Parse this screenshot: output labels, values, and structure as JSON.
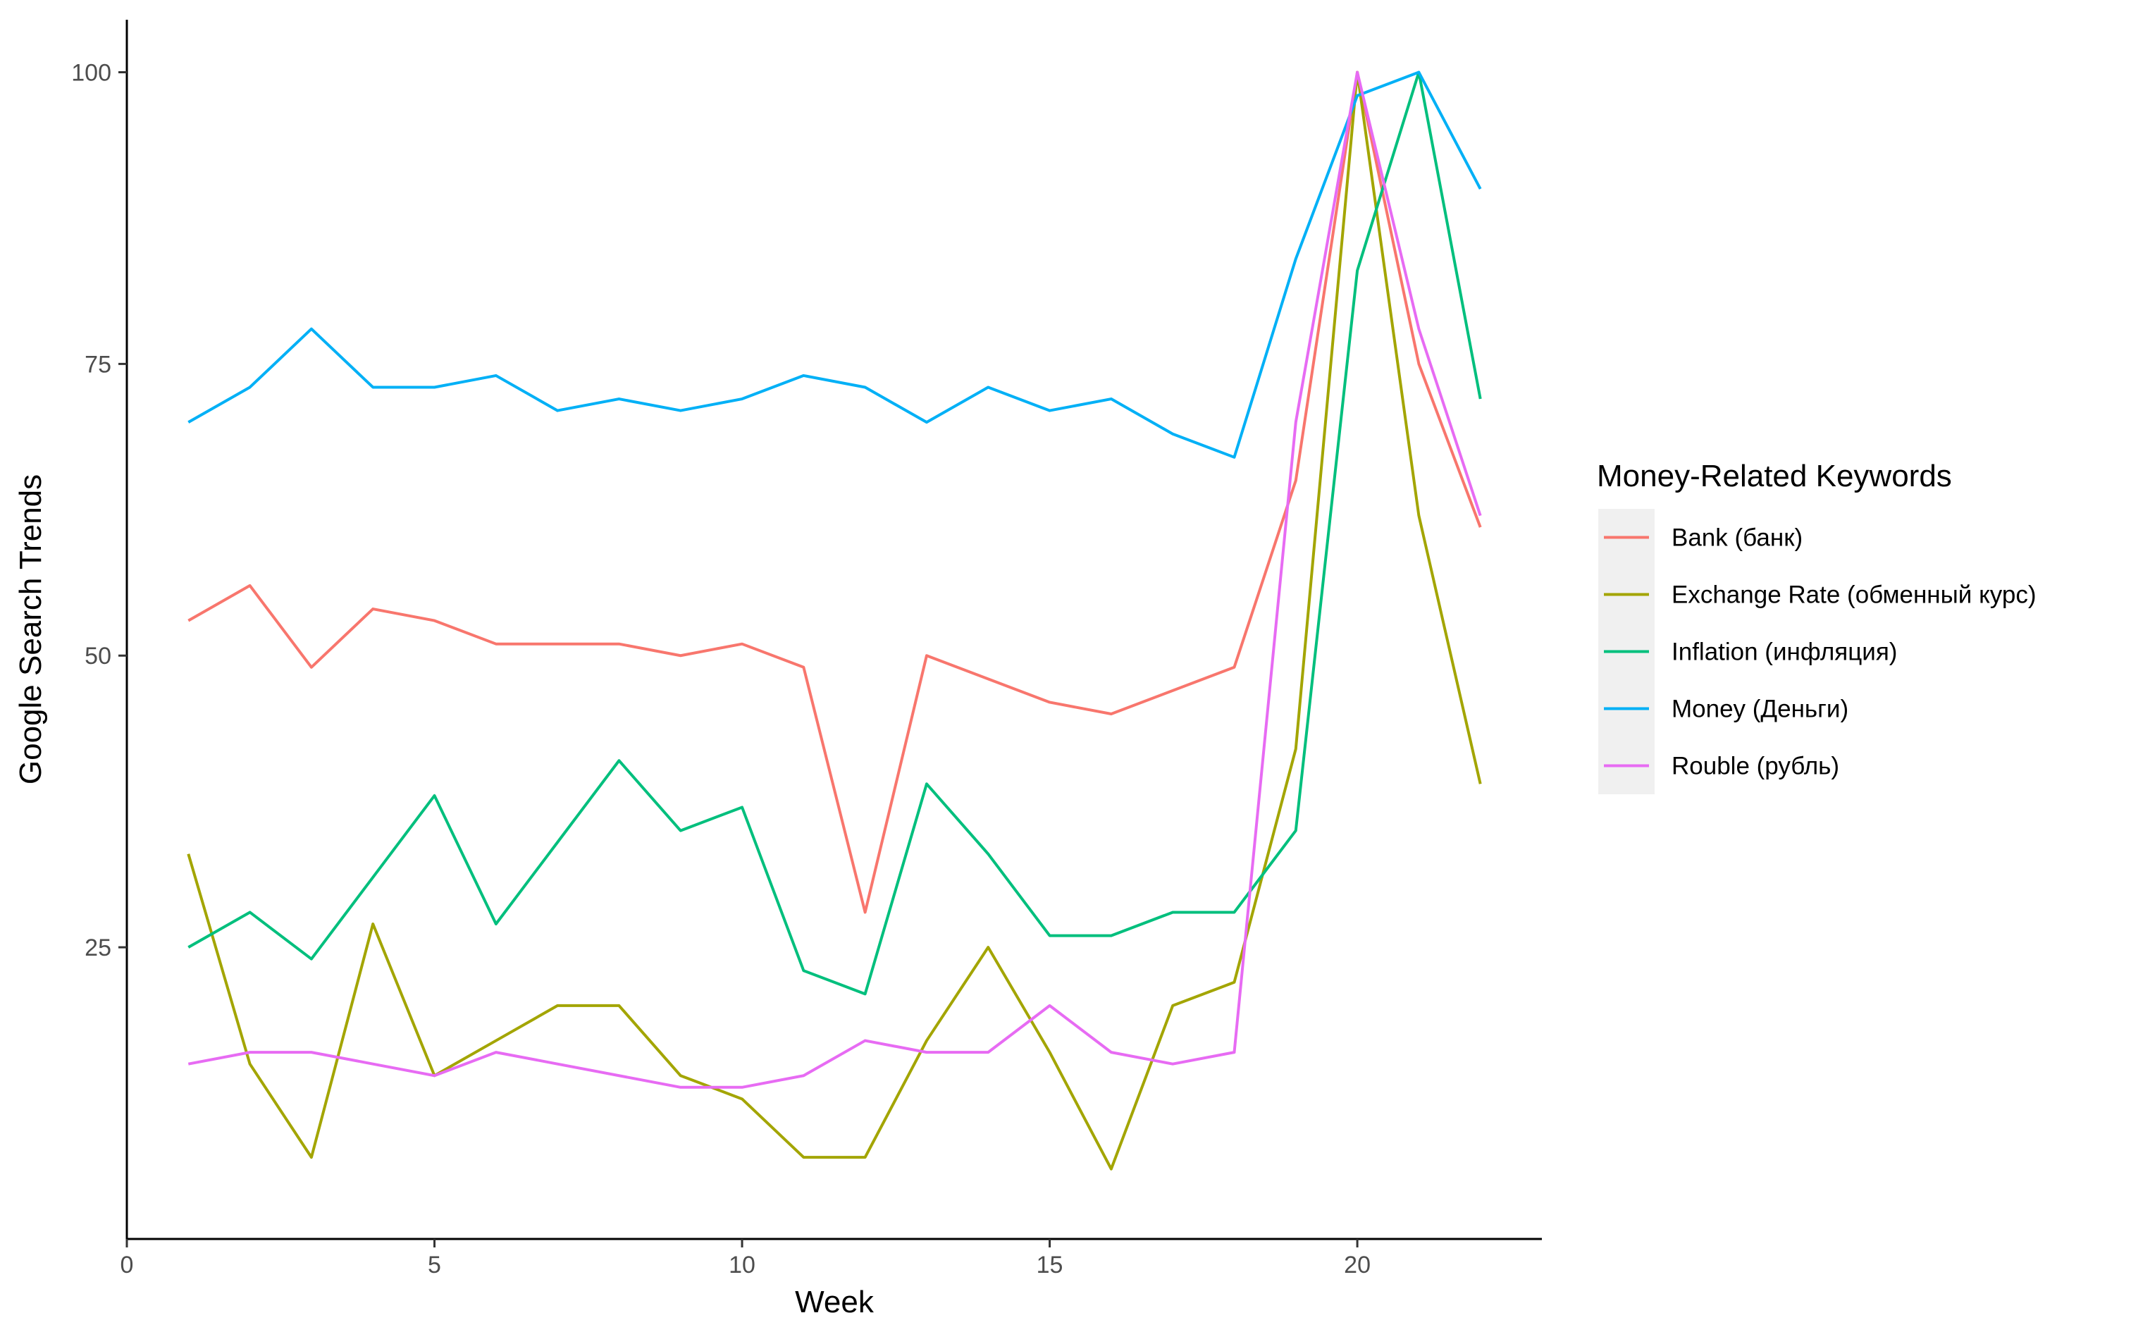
{
  "chart_data": {
    "type": "line",
    "title": "",
    "xlabel": "Week",
    "ylabel": "Google Search Trends",
    "xlim": [
      0,
      23
    ],
    "ylim": [
      0,
      104.5
    ],
    "x_ticks": [
      0,
      5,
      10,
      15,
      20
    ],
    "y_ticks": [
      25,
      50,
      75,
      100
    ],
    "grid": false,
    "legend": {
      "title": "Money-Related Keywords",
      "position": "right"
    },
    "x": [
      1,
      2,
      3,
      4,
      5,
      6,
      7,
      8,
      9,
      10,
      11,
      12,
      13,
      14,
      15,
      16,
      17,
      18,
      19,
      20,
      21,
      22
    ],
    "series": [
      {
        "name": "Bank (банк)",
        "color": "#F8766D",
        "values": [
          53,
          56,
          49,
          54,
          53,
          51,
          51,
          51,
          50,
          51,
          49,
          28,
          50,
          48,
          46,
          45,
          47,
          49,
          65,
          100,
          75,
          61
        ]
      },
      {
        "name": "Exchange Rate (обменный курс)",
        "color": "#A3A500",
        "values": [
          33,
          15,
          7,
          27,
          14,
          17,
          20,
          20,
          14,
          12,
          7,
          7,
          17,
          25,
          16,
          6,
          20,
          22,
          42,
          100,
          62,
          39
        ]
      },
      {
        "name": "Inflation (инфляция)",
        "color": "#00BF7D",
        "values": [
          25,
          28,
          24,
          31,
          38,
          27,
          34,
          41,
          35,
          37,
          23,
          21,
          39,
          33,
          26,
          26,
          28,
          28,
          35,
          83,
          100,
          72
        ]
      },
      {
        "name": "Money (Деньги)",
        "color": "#00B0F6",
        "values": [
          70,
          73,
          78,
          73,
          73,
          74,
          71,
          72,
          71,
          72,
          74,
          73,
          70,
          73,
          71,
          72,
          69,
          67,
          84,
          98,
          100,
          90
        ]
      },
      {
        "name": "Rouble (рубль)",
        "color": "#E76BF3",
        "values": [
          15,
          16,
          16,
          15,
          14,
          16,
          15,
          14,
          13,
          13,
          14,
          17,
          16,
          16,
          20,
          16,
          15,
          16,
          70,
          100,
          78,
          62
        ]
      }
    ]
  }
}
